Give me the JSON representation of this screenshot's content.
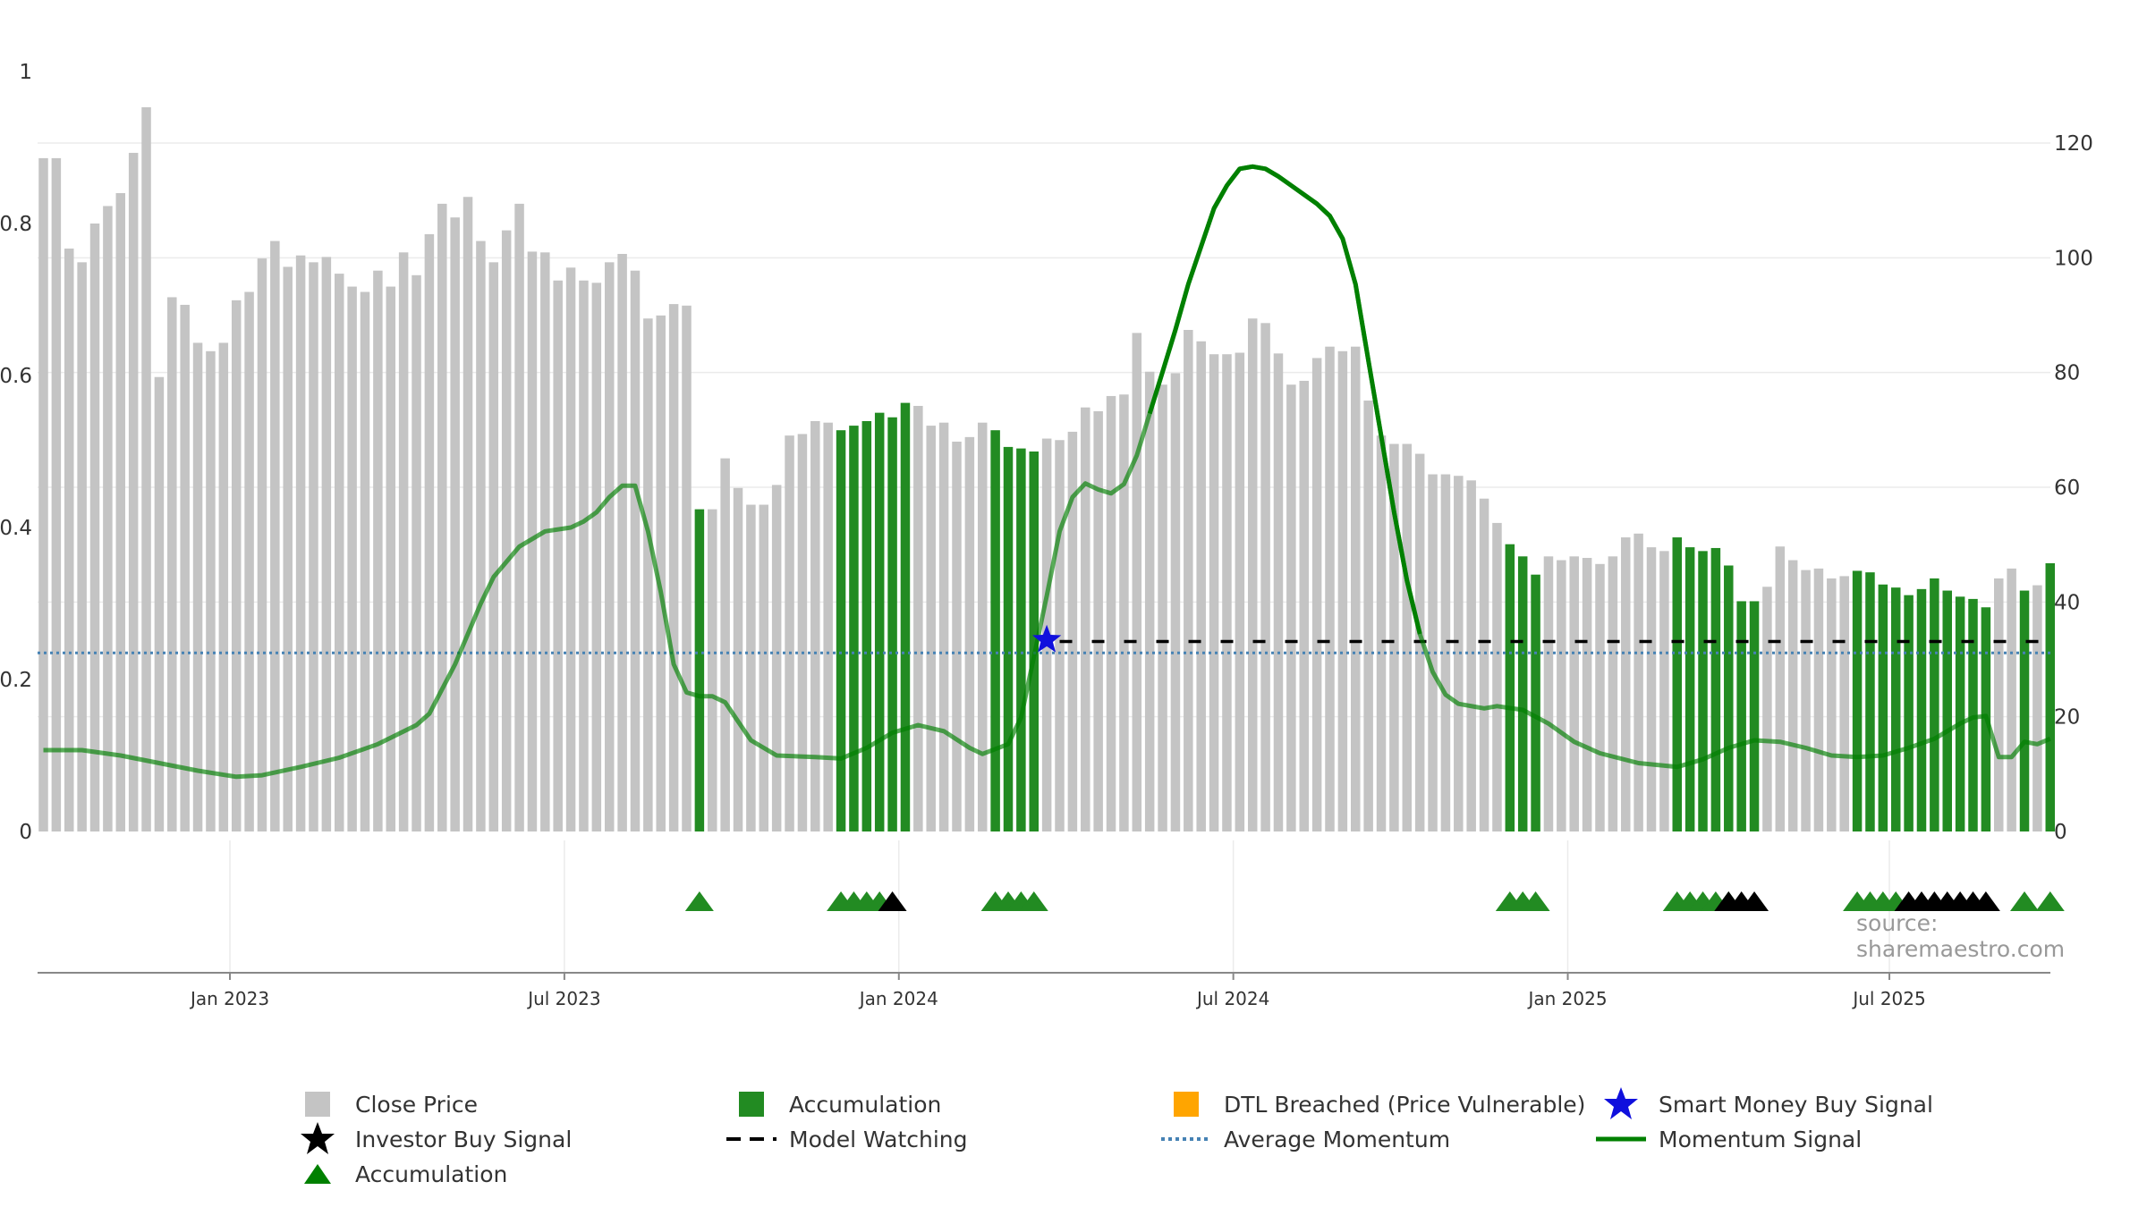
{
  "chart_data": {
    "type": "bar",
    "source_text": "source: sharemaestro.com",
    "left_axis": {
      "ticks": [
        "1",
        "0.8",
        "0.6",
        "0.4",
        "0.2",
        "0"
      ],
      "ylim": [
        0,
        1
      ]
    },
    "right_axis": {
      "ticks": [
        "120",
        "100",
        "80",
        "60",
        "40",
        "20",
        "0"
      ],
      "ylim": [
        0,
        130
      ]
    },
    "x_ticks": [
      "Jan 2023",
      "Jul 2023",
      "Jan 2024",
      "Jul 2024",
      "Jan 2025",
      "Jul 2025"
    ],
    "weeks": 157,
    "colors": {
      "close_price": "#c4c4c4",
      "accumulation": "#228b22",
      "model_watching": "#000000",
      "average_momentum": "#4682b4",
      "momentum_signal": "#008000",
      "investor_buy": "#000000",
      "smart_money": "#1010dd",
      "dtl_breached": "#ffa500"
    },
    "close_price": [
      0.886,
      0.886,
      0.767,
      0.749,
      0.8,
      0.823,
      0.84,
      0.893,
      0.953,
      0.598,
      0.703,
      0.693,
      0.643,
      0.632,
      0.643,
      0.699,
      0.71,
      0.754,
      0.777,
      0.743,
      0.758,
      0.749,
      0.756,
      0.734,
      0.717,
      0.71,
      0.738,
      0.717,
      0.762,
      0.732,
      0.786,
      0.826,
      0.808,
      0.835,
      0.777,
      0.749,
      0.791,
      0.826,
      0.763,
      0.762,
      0.725,
      0.742,
      0.725,
      0.722,
      0.749,
      0.76,
      0.738,
      0.675,
      0.679,
      0.694,
      0.692,
      0.424,
      0.424,
      0.491,
      0.452,
      0.43,
      0.43,
      0.456,
      0.521,
      0.523,
      0.54,
      0.538,
      0.528,
      0.534,
      0.54,
      0.551,
      0.545,
      0.564,
      0.56,
      0.534,
      0.538,
      0.513,
      0.519,
      0.538,
      0.528,
      0.506,
      0.504,
      0.5,
      0.517,
      0.515,
      0.526,
      0.558,
      0.553,
      0.573,
      0.575,
      0.656,
      0.605,
      0.588,
      0.603,
      0.66,
      0.645,
      0.628,
      0.628,
      0.63,
      0.675,
      0.669,
      0.629,
      0.588,
      0.593,
      0.623,
      0.638,
      0.632,
      0.638,
      0.567,
      0.521,
      0.51,
      0.51,
      0.497,
      0.47,
      0.47,
      0.468,
      0.462,
      0.438,
      0.406,
      0.378,
      0.362,
      0.338,
      0.362,
      0.357,
      0.362,
      0.36,
      0.352,
      0.362,
      0.387,
      0.392,
      0.374,
      0.369,
      0.387,
      0.374,
      0.369,
      0.373,
      0.35,
      0.303,
      0.303,
      0.322,
      0.375,
      0.357,
      0.344,
      0.346,
      0.333,
      0.336,
      0.343,
      0.341,
      0.325,
      0.321,
      0.311,
      0.319,
      0.333,
      0.317,
      0.309,
      0.306,
      0.295,
      0.333,
      0.346,
      0.317,
      0.324,
      0.353
    ],
    "accumulation_weeks": [
      51,
      62,
      63,
      64,
      65,
      66,
      67,
      74,
      75,
      76,
      77,
      114,
      115,
      116,
      127,
      128,
      129,
      130,
      131,
      132,
      133,
      141,
      142,
      143,
      144,
      145,
      146,
      147,
      148,
      149,
      150,
      151,
      154,
      156
    ],
    "accumulation_markers": [
      51,
      62,
      63,
      64,
      65,
      74,
      75,
      76,
      77,
      114,
      115,
      116,
      127,
      128,
      129,
      130,
      131,
      141,
      142,
      143,
      144,
      154,
      156
    ],
    "investor_buy_markers": [
      66,
      131,
      132,
      133,
      145,
      146,
      147,
      148,
      149,
      150,
      151
    ],
    "smart_money_marker": [
      78,
      0.252
    ],
    "average_momentum": 0.235,
    "model_watching": {
      "from_week": 79,
      "to_week": 156,
      "value": 0.25
    },
    "momentum_signal": [
      [
        0,
        0.107
      ],
      [
        3,
        0.107
      ],
      [
        6,
        0.1
      ],
      [
        9,
        0.09
      ],
      [
        12,
        0.08
      ],
      [
        15,
        0.072
      ],
      [
        17,
        0.074
      ],
      [
        20,
        0.085
      ],
      [
        23,
        0.097
      ],
      [
        26,
        0.115
      ],
      [
        29,
        0.14
      ],
      [
        30,
        0.155
      ],
      [
        32,
        0.22
      ],
      [
        34,
        0.3
      ],
      [
        35,
        0.335
      ],
      [
        37,
        0.375
      ],
      [
        39,
        0.395
      ],
      [
        41,
        0.4
      ],
      [
        42,
        0.408
      ],
      [
        43,
        0.42
      ],
      [
        44,
        0.44
      ],
      [
        45,
        0.455
      ],
      [
        46,
        0.455
      ],
      [
        47,
        0.395
      ],
      [
        48,
        0.315
      ],
      [
        49,
        0.22
      ],
      [
        50,
        0.183
      ],
      [
        51,
        0.178
      ],
      [
        52,
        0.178
      ],
      [
        53,
        0.17
      ],
      [
        54,
        0.145
      ],
      [
        55,
        0.12
      ],
      [
        57,
        0.1
      ],
      [
        60,
        0.098
      ],
      [
        62,
        0.096
      ],
      [
        64,
        0.11
      ],
      [
        66,
        0.13
      ],
      [
        68,
        0.14
      ],
      [
        70,
        0.132
      ],
      [
        72,
        0.11
      ],
      [
        73,
        0.102
      ],
      [
        75,
        0.115
      ],
      [
        76,
        0.15
      ],
      [
        77,
        0.23
      ],
      [
        78,
        0.31
      ],
      [
        79,
        0.395
      ],
      [
        80,
        0.44
      ],
      [
        81,
        0.458
      ],
      [
        82,
        0.45
      ],
      [
        83,
        0.445
      ],
      [
        84,
        0.457
      ],
      [
        85,
        0.495
      ],
      [
        86,
        0.55
      ],
      [
        87,
        0.605
      ],
      [
        88,
        0.66
      ],
      [
        89,
        0.72
      ],
      [
        90,
        0.77
      ],
      [
        91,
        0.82
      ],
      [
        92,
        0.85
      ],
      [
        93,
        0.872
      ],
      [
        94,
        0.875
      ],
      [
        95,
        0.872
      ],
      [
        96,
        0.862
      ],
      [
        97,
        0.85
      ],
      [
        98,
        0.838
      ],
      [
        99,
        0.826
      ],
      [
        100,
        0.81
      ],
      [
        101,
        0.78
      ],
      [
        102,
        0.72
      ],
      [
        103,
        0.62
      ],
      [
        104,
        0.52
      ],
      [
        105,
        0.42
      ],
      [
        106,
        0.33
      ],
      [
        107,
        0.26
      ],
      [
        108,
        0.21
      ],
      [
        109,
        0.18
      ],
      [
        110,
        0.168
      ],
      [
        112,
        0.162
      ],
      [
        113,
        0.165
      ],
      [
        115,
        0.16
      ],
      [
        117,
        0.142
      ],
      [
        119,
        0.118
      ],
      [
        121,
        0.103
      ],
      [
        124,
        0.09
      ],
      [
        127,
        0.085
      ],
      [
        129,
        0.095
      ],
      [
        131,
        0.11
      ],
      [
        133,
        0.12
      ],
      [
        135,
        0.118
      ],
      [
        137,
        0.11
      ],
      [
        139,
        0.1
      ],
      [
        141,
        0.098
      ],
      [
        143,
        0.1
      ],
      [
        145,
        0.11
      ],
      [
        147,
        0.122
      ],
      [
        149,
        0.142
      ],
      [
        150,
        0.15
      ],
      [
        151,
        0.152
      ],
      [
        152,
        0.098
      ],
      [
        153,
        0.098
      ],
      [
        154,
        0.118
      ],
      [
        155,
        0.115
      ],
      [
        156,
        0.122
      ]
    ],
    "legend": [
      {
        "label": "Close Price",
        "symbol": "square",
        "color": "#c4c4c4"
      },
      {
        "label": "Accumulation",
        "symbol": "square",
        "color": "#228b22"
      },
      {
        "label": "DTL Breached (Price Vulnerable)",
        "symbol": "square",
        "color": "#ffa500"
      },
      {
        "label": "Smart Money Buy Signal",
        "symbol": "star",
        "color": "#1010dd"
      },
      {
        "label": "Investor Buy Signal",
        "symbol": "star",
        "color": "#000000"
      },
      {
        "label": "Model Watching",
        "symbol": "dash",
        "color": "#000000"
      },
      {
        "label": "Average Momentum",
        "symbol": "dot",
        "color": "#4682b4"
      },
      {
        "label": "Momentum Signal",
        "symbol": "line",
        "color": "#008000"
      },
      {
        "label": "Accumulation",
        "symbol": "triangle",
        "color": "#008000"
      }
    ]
  }
}
